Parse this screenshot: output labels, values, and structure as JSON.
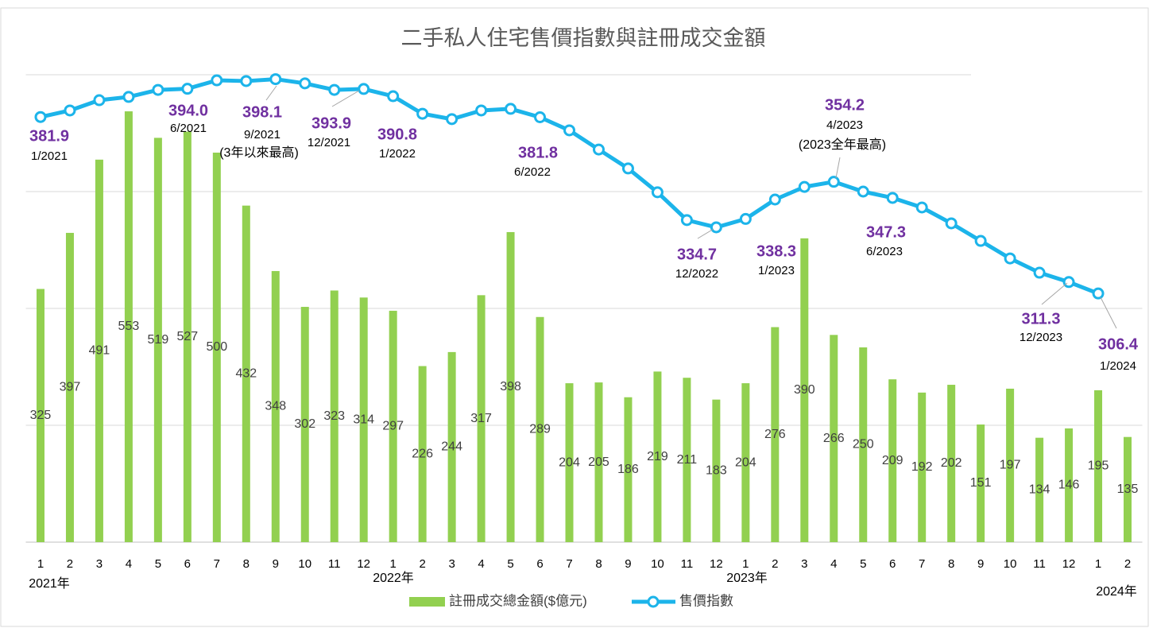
{
  "chart_data": {
    "type": "combo",
    "title": "二手私人住宅售價指數與註冊成交金額",
    "categories": [
      "1",
      "2",
      "3",
      "4",
      "5",
      "6",
      "7",
      "8",
      "9",
      "10",
      "11",
      "12",
      "1",
      "2",
      "3",
      "4",
      "5",
      "6",
      "7",
      "8",
      "9",
      "10",
      "11",
      "12",
      "1",
      "2",
      "3",
      "4",
      "5",
      "6",
      "7",
      "8",
      "9",
      "10",
      "11",
      "12",
      "1",
      "2"
    ],
    "year_labels": [
      "2021年",
      "2022年",
      "2023年",
      "2024年"
    ],
    "series": [
      {
        "name": "註冊成交總金額($億元)",
        "type": "bar",
        "color": "#92d050",
        "values": [
          325,
          397,
          491,
          553,
          519,
          527,
          500,
          432,
          348,
          302,
          323,
          314,
          297,
          226,
          244,
          317,
          398,
          289,
          204,
          205,
          186,
          219,
          211,
          183,
          204,
          276,
          390,
          266,
          250,
          209,
          192,
          202,
          151,
          197,
          134,
          146,
          195,
          135
        ]
      },
      {
        "name": "售價指數",
        "type": "line",
        "axis": "y2",
        "color": "#1cb4ea",
        "values": [
          381.9,
          384.7,
          389.1,
          390.5,
          393.5,
          394.0,
          397.6,
          397.3,
          398.1,
          396.3,
          393.5,
          393.9,
          390.8,
          383.3,
          381.0,
          384.7,
          385.4,
          381.8,
          376.2,
          368.0,
          359.9,
          349.7,
          337.8,
          334.7,
          338.3,
          346.6,
          352.0,
          354.2,
          350.0,
          347.3,
          343.2,
          336.4,
          328.9,
          321.4,
          315.3,
          311.3,
          306.4,
          null
        ],
        "value_labels": [
          "381.9",
          null,
          null,
          null,
          null,
          "394.0",
          null,
          null,
          "398.1",
          null,
          null,
          "393.9",
          "390.8",
          null,
          null,
          null,
          null,
          "381.8",
          null,
          null,
          null,
          null,
          null,
          "334.7",
          "338.3",
          null,
          null,
          "354.2",
          null,
          "347.3",
          null,
          null,
          null,
          null,
          null,
          "311.3",
          "306.4",
          null
        ],
        "point_labels": [
          "1/2021",
          null,
          null,
          null,
          null,
          "6/2021",
          null,
          null,
          "9/2021",
          null,
          null,
          "12/2021",
          "1/2022",
          null,
          null,
          null,
          null,
          "6/2022",
          null,
          null,
          null,
          null,
          null,
          "12/2022",
          "1/2023",
          null,
          null,
          "4/2023",
          null,
          "6/2023",
          null,
          null,
          null,
          null,
          null,
          "12/2023",
          "1/2024",
          null
        ],
        "point_notes": [
          null,
          null,
          null,
          null,
          null,
          null,
          null,
          null,
          "(3年以來最高)",
          null,
          null,
          null,
          null,
          null,
          null,
          null,
          null,
          null,
          null,
          null,
          null,
          null,
          null,
          null,
          null,
          null,
          null,
          "(2023全年最高)",
          null,
          null,
          null,
          null,
          null,
          null,
          null,
          null,
          null,
          null
        ]
      }
    ],
    "ylim": [
      0,
      600
    ],
    "yticks": [
      0,
      150,
      300,
      450,
      600
    ],
    "y2lim": [
      200,
      400
    ],
    "grid": true,
    "legend": "bottom"
  }
}
